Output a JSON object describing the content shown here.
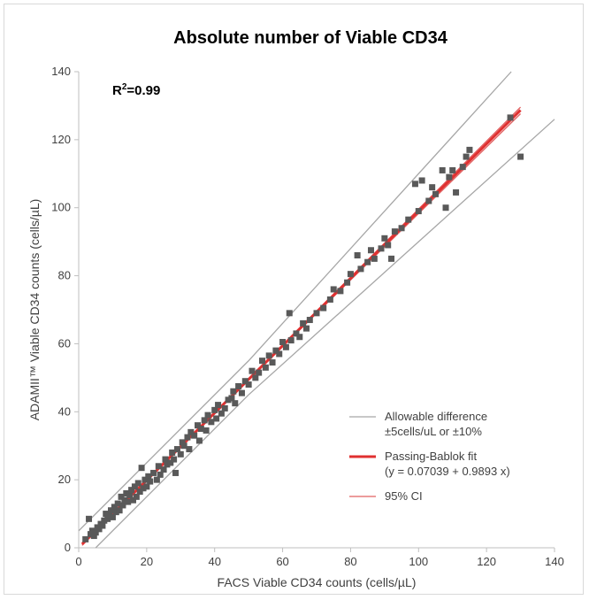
{
  "chart_data": {
    "type": "scatter",
    "title": "Absolute number of Viable CD34",
    "xlabel": "FACS Viable CD34 counts (cells/µL)",
    "ylabel": "ADAMII™ Viable CD34 counts (cells/µL)",
    "xlim": [
      0,
      140
    ],
    "ylim": [
      0,
      140
    ],
    "xticks": [
      "0",
      "20",
      "40",
      "60",
      "80",
      "100",
      "120",
      "140"
    ],
    "yticks": [
      "0",
      "20",
      "40",
      "60",
      "80",
      "100",
      "120",
      "140"
    ],
    "grid": false,
    "legend_position": "bottom-right",
    "annotation": {
      "r2_base": "R",
      "r2_sup": "2",
      "r2_value": "=0.99"
    },
    "colors": {
      "points": "#595959",
      "fit": "#e03030",
      "ci": "#e06060",
      "allowable": "#a6a6a6"
    },
    "legend": [
      {
        "key": "allowable",
        "line1": "Allowable difference",
        "line2": "±5cells/uL or ±10%"
      },
      {
        "key": "fit",
        "line1": "Passing-Bablok fit",
        "line2": "(y = 0.07039 + 0.9893 x)"
      },
      {
        "key": "ci",
        "line1": "95% CI",
        "line2": ""
      }
    ],
    "fit": {
      "intercept": 0.07039,
      "slope": 0.9893,
      "x_range": [
        1,
        130
      ]
    },
    "ci": [
      {
        "intercept": 0.5,
        "slope": 0.978,
        "x_range": [
          1,
          130
        ]
      },
      {
        "intercept": -0.3,
        "slope": 0.999,
        "x_range": [
          1,
          130
        ]
      }
    ],
    "allowable": [
      {
        "name": "upper_abs",
        "x": [
          0,
          50
        ],
        "y": [
          5,
          55
        ]
      },
      {
        "name": "upper_pct",
        "x": [
          50,
          140
        ],
        "y": [
          55,
          154
        ]
      },
      {
        "name": "lower_abs",
        "x": [
          5,
          50
        ],
        "y": [
          0,
          45
        ]
      },
      {
        "name": "lower_pct",
        "x": [
          50,
          140
        ],
        "y": [
          45,
          126
        ]
      }
    ],
    "points": [
      [
        2,
        2.5
      ],
      [
        3,
        8.5
      ],
      [
        3.5,
        4
      ],
      [
        4,
        5
      ],
      [
        4.5,
        3.5
      ],
      [
        5,
        4.5
      ],
      [
        5.5,
        6
      ],
      [
        6,
        5.5
      ],
      [
        6.5,
        7
      ],
      [
        7,
        6.5
      ],
      [
        7.5,
        8
      ],
      [
        8,
        10
      ],
      [
        8.5,
        8.5
      ],
      [
        9,
        9.5
      ],
      [
        9.5,
        11
      ],
      [
        10,
        9
      ],
      [
        10.5,
        12
      ],
      [
        11,
        10.5
      ],
      [
        11.5,
        13
      ],
      [
        12,
        11
      ],
      [
        12.5,
        15
      ],
      [
        13,
        12.5
      ],
      [
        13.5,
        14
      ],
      [
        14,
        16
      ],
      [
        14.5,
        13.5
      ],
      [
        15,
        15.5
      ],
      [
        15.5,
        17
      ],
      [
        16,
        14
      ],
      [
        16.5,
        18
      ],
      [
        17,
        15
      ],
      [
        17.5,
        19
      ],
      [
        18,
        16.5
      ],
      [
        18.5,
        23.5
      ],
      [
        19,
        17.5
      ],
      [
        19.5,
        20
      ],
      [
        20,
        18
      ],
      [
        20.5,
        21
      ],
      [
        21,
        19.5
      ],
      [
        22,
        22
      ],
      [
        23,
        20
      ],
      [
        23.5,
        24
      ],
      [
        24,
        21.5
      ],
      [
        25,
        23
      ],
      [
        25.5,
        26
      ],
      [
        26,
        24.5
      ],
      [
        27,
        25
      ],
      [
        27.5,
        28
      ],
      [
        28,
        26
      ],
      [
        28.5,
        22
      ],
      [
        29,
        29
      ],
      [
        30,
        27.5
      ],
      [
        30.5,
        31
      ],
      [
        31,
        30
      ],
      [
        32,
        32.5
      ],
      [
        32.5,
        29
      ],
      [
        33,
        34
      ],
      [
        34,
        33
      ],
      [
        35,
        36
      ],
      [
        35.5,
        31.5
      ],
      [
        36,
        35
      ],
      [
        37,
        37.5
      ],
      [
        37.5,
        34.5
      ],
      [
        38,
        39
      ],
      [
        39,
        37
      ],
      [
        40,
        40.5
      ],
      [
        40.5,
        38
      ],
      [
        41,
        42
      ],
      [
        42,
        39.5
      ],
      [
        43,
        41
      ],
      [
        44,
        43.5
      ],
      [
        45,
        44
      ],
      [
        45.5,
        46
      ],
      [
        46,
        42.5
      ],
      [
        47,
        47.5
      ],
      [
        48,
        45.5
      ],
      [
        49,
        49
      ],
      [
        50,
        48
      ],
      [
        51,
        52
      ],
      [
        52,
        50
      ],
      [
        53,
        51.5
      ],
      [
        54,
        55
      ],
      [
        55,
        53
      ],
      [
        56,
        56.5
      ],
      [
        57,
        54.5
      ],
      [
        58,
        58
      ],
      [
        59,
        57
      ],
      [
        60,
        60.5
      ],
      [
        61,
        59
      ],
      [
        62,
        69
      ],
      [
        62.5,
        61
      ],
      [
        64,
        63
      ],
      [
        65,
        62
      ],
      [
        66,
        66
      ],
      [
        67,
        64.5
      ],
      [
        68,
        67
      ],
      [
        70,
        69
      ],
      [
        72,
        70.5
      ],
      [
        74,
        73
      ],
      [
        75,
        76
      ],
      [
        77,
        75.5
      ],
      [
        79,
        78
      ],
      [
        80,
        80.5
      ],
      [
        82,
        86
      ],
      [
        83,
        82
      ],
      [
        85,
        84
      ],
      [
        86,
        87.5
      ],
      [
        87,
        85
      ],
      [
        89,
        88
      ],
      [
        90,
        91
      ],
      [
        91,
        89
      ],
      [
        92,
        85
      ],
      [
        93,
        93
      ],
      [
        95,
        94
      ],
      [
        97,
        96.5
      ],
      [
        99,
        107
      ],
      [
        100,
        99
      ],
      [
        101,
        108
      ],
      [
        103,
        102
      ],
      [
        104,
        106
      ],
      [
        105,
        104
      ],
      [
        107,
        111
      ],
      [
        108,
        100
      ],
      [
        109,
        109
      ],
      [
        110,
        111
      ],
      [
        111,
        104.5
      ],
      [
        113,
        112
      ],
      [
        114,
        115
      ],
      [
        115,
        117
      ],
      [
        127,
        126.5
      ],
      [
        130,
        115
      ]
    ]
  }
}
